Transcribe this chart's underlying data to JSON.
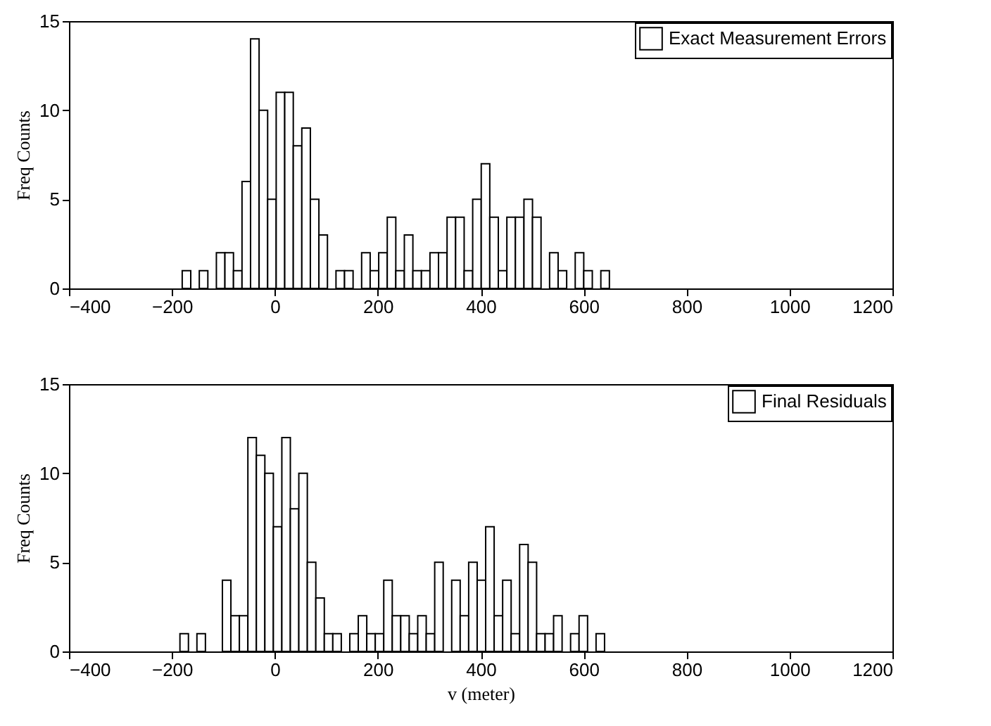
{
  "chart_data": [
    {
      "type": "histogram",
      "ylabel": "Freq Counts",
      "legend": "top right",
      "grid": false,
      "xlim": [
        -400,
        1200
      ],
      "xticks": [
        -400,
        -200,
        0,
        200,
        400,
        600,
        800,
        1000,
        1200
      ],
      "ylim": [
        0,
        15
      ],
      "yticks": [
        0,
        5,
        10,
        15
      ],
      "bins": [
        -180,
        -163.4,
        -146.8,
        -130.2,
        -113.6,
        -97,
        -80.4,
        -63.8,
        -47.2,
        -30.6,
        -14,
        2.6,
        19.2,
        35.8,
        52.4,
        69,
        85.6,
        102.2,
        118.8,
        135.4,
        152,
        168.6,
        185.2,
        201.8,
        218.4,
        235,
        251.6,
        268.2,
        284.8,
        301.4,
        318,
        334.6,
        351.2,
        367.8,
        384.4,
        401,
        417.6,
        434.2,
        450.8,
        467.4,
        484,
        500.6,
        517.2,
        533.8,
        550.4,
        567,
        583.6,
        600.2,
        616.8,
        633.4,
        650
      ],
      "series": [
        {
          "name": "Exact Measurement Errors",
          "color": "#ffffff",
          "values": [
            1,
            0,
            1,
            0,
            2,
            2,
            1,
            6,
            14,
            10,
            5,
            11,
            11,
            8,
            9,
            5,
            3,
            0,
            1,
            1,
            0,
            2,
            1,
            2,
            4,
            1,
            3,
            1,
            1,
            2,
            2,
            4,
            4,
            1,
            5,
            7,
            4,
            1,
            4,
            4,
            5,
            4,
            0,
            2,
            1,
            0,
            2,
            1,
            0,
            1
          ]
        }
      ]
    },
    {
      "type": "histogram",
      "ylabel": "Freq Counts",
      "xlabel": "v (meter)",
      "legend": "top right",
      "grid": false,
      "xlim": [
        -400,
        1200
      ],
      "xticks": [
        -400,
        -200,
        0,
        200,
        400,
        600,
        800,
        1000,
        1200
      ],
      "ylim": [
        0,
        15
      ],
      "yticks": [
        0,
        5,
        10,
        15
      ],
      "bins": [
        -184.4,
        -167.9,
        -151.4,
        -134.9,
        -118.4,
        -101.9,
        -85.4,
        -68.9,
        -52.4,
        -35.9,
        -19.4,
        -2.9,
        13.6,
        30.1,
        46.6,
        63.1,
        79.6,
        96.1,
        112.6,
        129.1,
        145.6,
        162.1,
        178.6,
        195.1,
        211.6,
        228.1,
        244.6,
        261.1,
        277.6,
        294.1,
        310.6,
        327.1,
        343.6,
        360.1,
        376.6,
        393.1,
        409.6,
        426.1,
        442.6,
        459.1,
        475.6,
        492.1,
        508.6,
        525.1,
        541.6,
        558.1,
        574.6,
        591.1,
        607.6,
        624.1,
        640.6
      ],
      "series": [
        {
          "name": "Final Residuals",
          "color": "#ffffff",
          "values": [
            1,
            0,
            1,
            0,
            0,
            4,
            2,
            2,
            12,
            11,
            10,
            7,
            12,
            8,
            10,
            5,
            3,
            1,
            1,
            0,
            1,
            2,
            1,
            1,
            4,
            2,
            2,
            1,
            2,
            1,
            5,
            0,
            4,
            2,
            5,
            4,
            7,
            2,
            4,
            1,
            6,
            5,
            1,
            1,
            2,
            0,
            1,
            2,
            0,
            1
          ]
        }
      ]
    }
  ]
}
